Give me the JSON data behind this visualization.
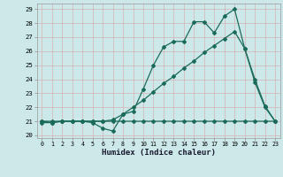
{
  "title": "",
  "xlabel": "Humidex (Indice chaleur)",
  "bg_color": "#cce8e8",
  "grid_color": "#b0d0d0",
  "line_color": "#1a6b5a",
  "xlim": [
    -0.5,
    23.5
  ],
  "ylim": [
    19.8,
    29.4
  ],
  "xticks": [
    0,
    1,
    2,
    3,
    4,
    5,
    6,
    7,
    8,
    9,
    10,
    11,
    12,
    13,
    14,
    15,
    16,
    17,
    18,
    19,
    20,
    21,
    22,
    23
  ],
  "yticks": [
    20,
    21,
    22,
    23,
    24,
    25,
    26,
    27,
    28,
    29
  ],
  "line1_x": [
    0,
    1,
    2,
    3,
    4,
    5,
    6,
    7,
    8,
    9,
    10,
    11,
    12,
    13,
    14,
    15,
    16,
    17,
    18,
    19,
    20,
    21,
    22,
    23
  ],
  "line1_y": [
    21.0,
    20.9,
    21.0,
    21.0,
    21.0,
    21.0,
    21.0,
    21.0,
    21.0,
    21.0,
    21.0,
    21.0,
    21.0,
    21.0,
    21.0,
    21.0,
    21.0,
    21.0,
    21.0,
    21.0,
    21.0,
    21.0,
    21.0,
    21.0
  ],
  "line2_x": [
    0,
    1,
    2,
    3,
    4,
    5,
    6,
    7,
    8,
    9,
    10,
    11,
    12,
    13,
    14,
    15,
    16,
    17,
    18,
    19,
    20,
    21,
    22,
    23
  ],
  "line2_y": [
    21.0,
    21.0,
    21.0,
    21.0,
    21.0,
    21.0,
    21.0,
    21.1,
    21.5,
    22.0,
    22.5,
    23.1,
    23.7,
    24.2,
    24.8,
    25.3,
    25.9,
    26.4,
    26.9,
    27.4,
    26.2,
    24.0,
    22.1,
    21.0
  ],
  "line3_x": [
    0,
    1,
    2,
    3,
    4,
    5,
    6,
    7,
    8,
    9,
    10,
    11,
    12,
    13,
    14,
    15,
    16,
    17,
    18,
    19,
    20,
    21,
    22,
    23
  ],
  "line3_y": [
    20.9,
    20.9,
    21.0,
    21.0,
    21.0,
    20.9,
    20.5,
    20.3,
    21.5,
    21.7,
    23.3,
    25.0,
    26.3,
    26.7,
    26.7,
    28.1,
    28.1,
    27.3,
    28.5,
    29.0,
    26.2,
    23.8,
    22.0,
    21.0
  ]
}
